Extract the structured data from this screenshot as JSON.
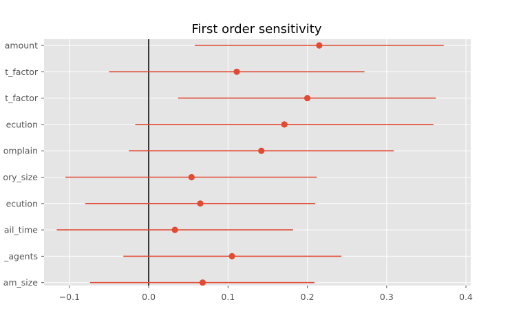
{
  "chart_data": {
    "type": "scatter",
    "title": "First order sensitivity",
    "xlabel": "",
    "ylabel": "",
    "xlim": [
      -0.132,
      0.406
    ],
    "xticks": [
      -0.1,
      0.0,
      0.1,
      0.2,
      0.3,
      0.4
    ],
    "xtick_labels": [
      "−0.1",
      "0.0",
      "0.1",
      "0.2",
      "0.3",
      "0.4"
    ],
    "grid": true,
    "reference_line_x": 0.0,
    "categories": [
      "amount",
      "t_factor",
      "t_factor",
      "ecution",
      "omplain",
      "ory_size",
      "ecution",
      "ail_time",
      "_agents",
      "am_size"
    ],
    "values": [
      0.215,
      0.111,
      0.2,
      0.171,
      0.142,
      0.054,
      0.065,
      0.033,
      0.105,
      0.068
    ],
    "ci_low": [
      0.058,
      -0.05,
      0.037,
      -0.017,
      -0.025,
      -0.105,
      -0.08,
      -0.116,
      -0.032,
      -0.074
    ],
    "ci_high": [
      0.372,
      0.272,
      0.362,
      0.359,
      0.309,
      0.212,
      0.21,
      0.182,
      0.243,
      0.209
    ],
    "colors": {
      "series": "#e24a33",
      "background": "#e5e5e5",
      "grid": "#ffffff",
      "reference_line": "#000000"
    }
  }
}
